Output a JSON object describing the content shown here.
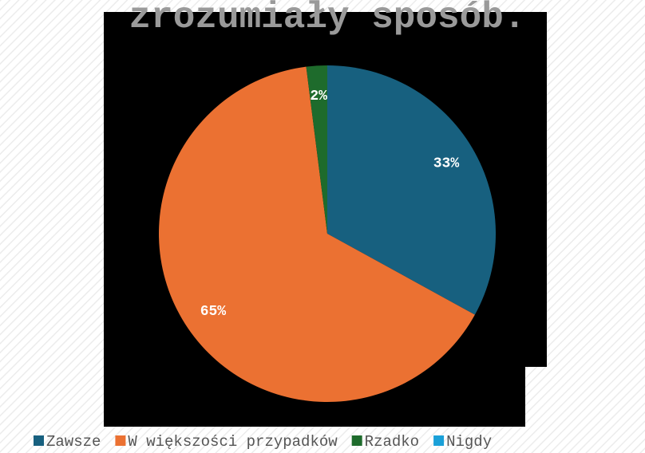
{
  "chart_data": {
    "type": "pie",
    "title": "zrozumiały sposób.",
    "categories": [
      "Zawsze",
      "W większości przypadków",
      "Rzadko",
      "Nigdy"
    ],
    "values": [
      33,
      65,
      2,
      0
    ],
    "value_labels": [
      "33%",
      "65%",
      "2%",
      null
    ],
    "colors": [
      "#17607f",
      "#eb7132",
      "#1e6b2c",
      "#1aa0d8"
    ],
    "legend": "bottom"
  }
}
